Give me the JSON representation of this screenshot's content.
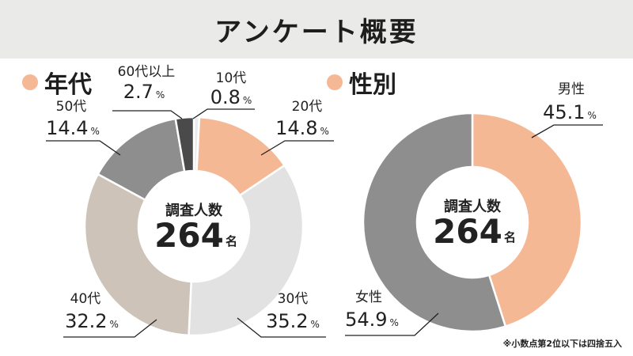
{
  "header": {
    "title": "アンケート概要"
  },
  "sections": {
    "age_title": "年代",
    "gender_title": "性別"
  },
  "center": {
    "label": "調査人数",
    "value": "264",
    "unit": "名"
  },
  "footnote": "※小数点第2位以下は四捨五入",
  "colors": {
    "accent": "#f5b895",
    "header_bg": "#eaeae8",
    "age_20s": "#f5b895",
    "age_30s": "#e2e2e2",
    "age_40s": "#cdc3b8",
    "age_50s": "#8e8e8e",
    "age_60s": "#4a4a4a",
    "age_10s": "#ebebeb",
    "male": "#f5b895",
    "female": "#8e8e8e"
  },
  "chart_data": [
    {
      "type": "pie",
      "title": "年代",
      "unit": "%",
      "categories": [
        "10代",
        "20代",
        "30代",
        "40代",
        "50代",
        "60代以上"
      ],
      "values": [
        0.8,
        14.8,
        35.2,
        32.2,
        14.4,
        2.7
      ],
      "value_labels": [
        "0.8",
        "14.8",
        "35.2",
        "32.2",
        "14.4",
        "2.7"
      ]
    },
    {
      "type": "pie",
      "title": "性別",
      "unit": "%",
      "categories": [
        "男性",
        "女性"
      ],
      "values": [
        45.1,
        54.9
      ],
      "value_labels": [
        "45.1",
        "54.9"
      ]
    }
  ]
}
